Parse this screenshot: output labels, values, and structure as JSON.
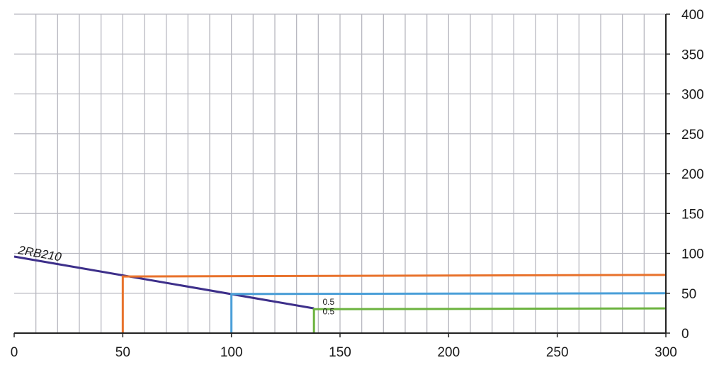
{
  "chart_data": {
    "type": "line",
    "title": "",
    "xlabel": "",
    "ylabel": "",
    "xlim": [
      0,
      300
    ],
    "ylim": [
      0,
      400
    ],
    "x_ticks": [
      "0",
      "50",
      "100",
      "150",
      "200",
      "250",
      "300"
    ],
    "y_ticks": [
      "0",
      "50",
      "100",
      "150",
      "200",
      "250",
      "300",
      "350",
      "400"
    ],
    "y_axis_side": "right",
    "grid": true,
    "series": [
      {
        "name": "2RB210",
        "color": "#3d2f8a",
        "x": [
          0,
          138
        ],
        "y": [
          96,
          31
        ]
      },
      {
        "name": "",
        "color": "#e8722c",
        "x": [
          50,
          50,
          300
        ],
        "y": [
          0,
          71,
          73
        ]
      },
      {
        "name": "",
        "color": "#4a9fd8",
        "x": [
          100,
          100,
          300
        ],
        "y": [
          0,
          49,
          50
        ]
      },
      {
        "name": "",
        "color": "#6cb33f",
        "x": [
          138,
          138,
          300
        ],
        "y": [
          0,
          30,
          31
        ]
      }
    ],
    "annotations": [
      {
        "text": "0.5",
        "x": 142,
        "y": 39
      },
      {
        "text": "0.5",
        "x": 142,
        "y": 27
      }
    ]
  }
}
